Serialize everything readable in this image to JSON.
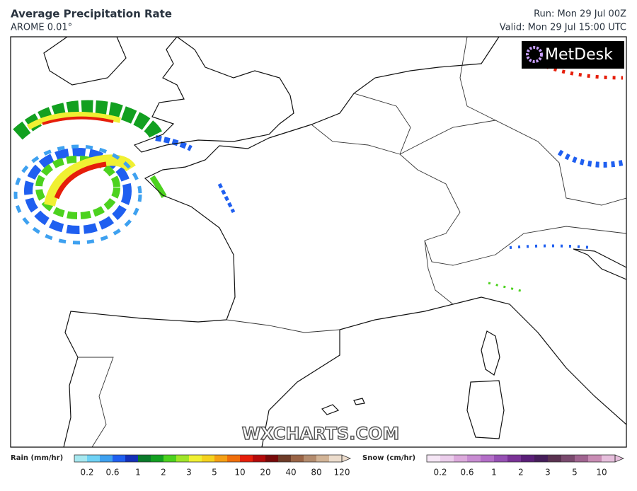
{
  "header": {
    "title": "Average Precipitation Rate",
    "model": "AROME 0.01°",
    "run": "Run: Mon 29 Jul 00Z",
    "valid": "Valid: Mon 29 Jul 15:00 UTC"
  },
  "map": {
    "logo": "MetDesk",
    "watermark": "WXCHARTS.COM"
  },
  "legend": {
    "rain": {
      "label": "Rain (mm/hr)",
      "ticks": [
        0.2,
        0.6,
        1,
        2,
        3,
        5,
        10,
        20,
        40,
        80,
        120
      ],
      "colors": [
        "#a6e8f0",
        "#6fd2f5",
        "#3ea1f0",
        "#1f5ff0",
        "#1430b8",
        "#0a7a2a",
        "#12a020",
        "#4cd21e",
        "#a0e628",
        "#f0f032",
        "#f5d21e",
        "#f5a014",
        "#f06e0a",
        "#e61e0a",
        "#b40a0a",
        "#780a0a",
        "#6e3c28",
        "#9a6446",
        "#b48c6e",
        "#d2b496",
        "#ecdccc"
      ]
    },
    "snow": {
      "label": "Snow (cm/hr)",
      "ticks": [
        0.2,
        0.6,
        1,
        2,
        3,
        5,
        10
      ],
      "colors": [
        "#f5e6f5",
        "#ebcdeb",
        "#dcaadc",
        "#c88cd2",
        "#b46ec8",
        "#9650b4",
        "#7a3296",
        "#5a1e78",
        "#461e5a",
        "#5a3250",
        "#7a4a6e",
        "#a06490",
        "#c88cb4",
        "#e6bedc"
      ]
    }
  }
}
